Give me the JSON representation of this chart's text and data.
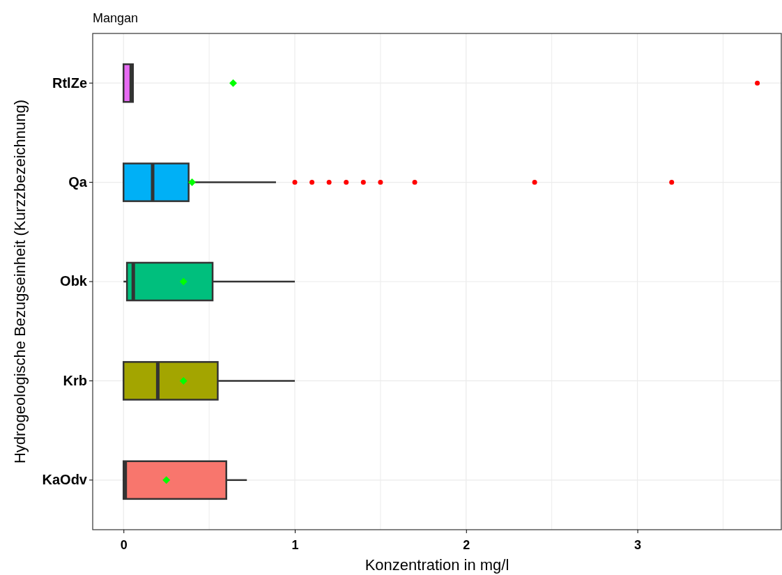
{
  "chart_data": {
    "type": "box",
    "orientation": "horizontal",
    "title": "Mangan",
    "xlabel": "Konzentration in mg/l",
    "ylabel": "Hydrogeologische Bezugseinheit (Kurzzbezeichnung)",
    "categories": [
      "RtlZe",
      "Qa",
      "Obk",
      "Krb",
      "KaOdv"
    ],
    "colors": [
      "#e76bf3",
      "#00b0f6",
      "#00bf7d",
      "#a3a500",
      "#f8766d"
    ],
    "boxes": [
      {
        "low": 0,
        "q1": 0,
        "median": 0.045,
        "q3": 0.055,
        "high": 0.055,
        "mean": 0.64,
        "outliers": [
          3.7
        ]
      },
      {
        "low": 0,
        "q1": 0,
        "median": 0.17,
        "q3": 0.38,
        "high": 0.89,
        "mean": 0.4,
        "outliers": [
          1.0,
          1.1,
          1.2,
          1.3,
          1.4,
          1.5,
          1.7,
          2.4,
          3.2
        ]
      },
      {
        "low": 0,
        "q1": 0.02,
        "median": 0.057,
        "q3": 0.52,
        "high": 1.0,
        "mean": 0.35
      },
      {
        "low": 0,
        "q1": 0,
        "median": 0.2,
        "q3": 0.55,
        "high": 1.0,
        "mean": 0.35
      },
      {
        "low": 0,
        "q1": 0,
        "median": 0.01,
        "q3": 0.6,
        "high": 0.72,
        "mean": 0.25
      }
    ],
    "xlim": [
      -0.18,
      3.84
    ],
    "xticks": [
      0,
      {
        "value": 0.5,
        "label": null
      },
      1,
      {
        "value": 1.5,
        "label": null
      },
      2,
      {
        "value": 2.5,
        "label": null
      },
      3,
      {
        "value": 3.5,
        "label": null
      }
    ],
    "grid": true
  }
}
